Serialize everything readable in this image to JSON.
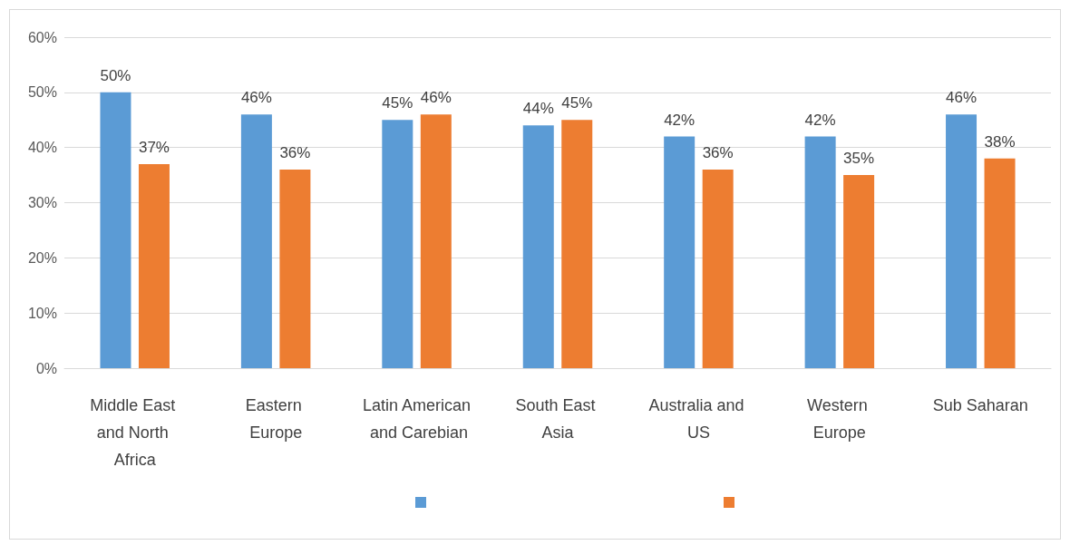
{
  "chart_data": {
    "type": "bar",
    "categories": [
      "Middle East and North Africa",
      "Eastern Europe",
      "Latin American and Carebian",
      "South East Asia",
      "Australia and US",
      "Western Europe",
      "Sub Saharan"
    ],
    "series": [
      {
        "color": "#5b9bd5",
        "values": [
          50,
          46,
          45,
          44,
          42,
          42,
          46
        ],
        "value_labels": [
          "50%",
          "46%",
          "45%",
          "44%",
          "42%",
          "42%",
          "46%"
        ]
      },
      {
        "color": "#ed7d31",
        "values": [
          37,
          36,
          46,
          45,
          36,
          35,
          38
        ],
        "value_labels": [
          "37%",
          "36%",
          "46%",
          "45%",
          "36%",
          "35%",
          "38%"
        ]
      }
    ],
    "ylim": [
      0,
      60
    ],
    "yticks": [
      {
        "value": 0,
        "label": "0%"
      },
      {
        "value": 10,
        "label": "10%"
      },
      {
        "value": 20,
        "label": "20%"
      },
      {
        "value": 30,
        "label": "30%"
      },
      {
        "value": 40,
        "label": "40%"
      },
      {
        "value": 50,
        "label": "50%"
      },
      {
        "value": 60,
        "label": "60%"
      }
    ],
    "grid": "y"
  }
}
